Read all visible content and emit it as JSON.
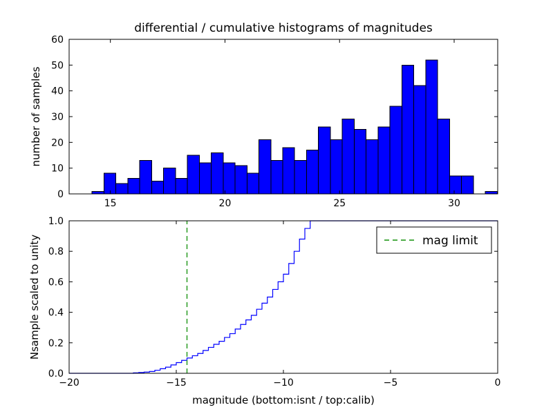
{
  "figure": {
    "background": "#ffffff",
    "frame_color": "#000000"
  },
  "chart_data": [
    {
      "type": "bar",
      "name": "differential-histogram",
      "title": "differential / cumulative histograms of magnitudes",
      "ylabel": "number of samples",
      "xlim": [
        13.2,
        31.9
      ],
      "ylim": [
        0,
        60
      ],
      "xticks": [
        15,
        20,
        25,
        30
      ],
      "xtick_labels": [
        "15",
        "20",
        "25",
        "30"
      ],
      "yticks": [
        0,
        10,
        20,
        30,
        40,
        50,
        60
      ],
      "ytick_labels": [
        "0",
        "10",
        "20",
        "30",
        "40",
        "50",
        "60"
      ],
      "bin_start": 14.2,
      "bin_width": 0.52,
      "counts": [
        1,
        8,
        4,
        6,
        13,
        5,
        10,
        6,
        15,
        12,
        16,
        12,
        11,
        8,
        21,
        13,
        18,
        13,
        17,
        26,
        21,
        29,
        25,
        21,
        26,
        34,
        50,
        42,
        52,
        29,
        7,
        7,
        0,
        1
      ],
      "bar_color": "#0000ff",
      "bar_edge_color": "#000000",
      "grid": false
    },
    {
      "type": "line",
      "name": "cumulative-histogram",
      "xlabel": "magnitude (bottom:isnt / top:calib)",
      "ylabel": "Nsample scaled to unity",
      "xlim": [
        -20,
        0
      ],
      "ylim": [
        0.0,
        1.0
      ],
      "xticks": [
        -20,
        -15,
        -10,
        -5,
        0
      ],
      "xtick_labels": [
        "−20",
        "−15",
        "−10",
        "−5",
        "0"
      ],
      "yticks": [
        0.0,
        0.2,
        0.4,
        0.6,
        0.8,
        1.0
      ],
      "ytick_labels": [
        "0.0",
        "0.2",
        "0.4",
        "0.6",
        "0.8",
        "1.0"
      ],
      "step_x_start": -17.0,
      "step_x_step": 0.25,
      "cumulative": [
        0.003,
        0.005,
        0.008,
        0.012,
        0.02,
        0.03,
        0.04,
        0.055,
        0.07,
        0.085,
        0.1,
        0.115,
        0.13,
        0.15,
        0.17,
        0.19,
        0.21,
        0.235,
        0.26,
        0.29,
        0.32,
        0.35,
        0.38,
        0.42,
        0.46,
        0.5,
        0.55,
        0.6,
        0.65,
        0.72,
        0.8,
        0.88,
        0.95,
        1.0
      ],
      "line_color": "#0000ff",
      "mag_limit": {
        "x": -14.5,
        "color": "#33a02c",
        "label": "mag limit"
      },
      "legend": {
        "position": "upper right",
        "entries": [
          {
            "label": "mag limit",
            "line_style": "dashed",
            "line_color": "#33a02c"
          }
        ]
      },
      "grid": false
    }
  ]
}
